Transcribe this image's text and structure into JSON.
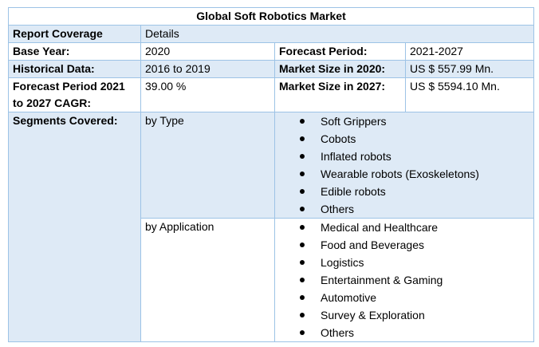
{
  "title": "Global Soft Robotics Market",
  "header": {
    "label": "Report Coverage",
    "value": "Details"
  },
  "rows": {
    "base_year": {
      "label": "Base Year:",
      "value": "2020"
    },
    "forecast_period": {
      "label": "Forecast Period:",
      "value": "2021-2027"
    },
    "historical_data": {
      "label": "Historical Data:",
      "value": "2016 to 2019"
    },
    "market_size_2020": {
      "label": "Market Size in 2020:",
      "value": "US $ 557.99 Mn."
    },
    "cagr": {
      "label": "Forecast Period 2021 to 2027 CAGR:",
      "value": "39.00 %"
    },
    "market_size_2027": {
      "label": "Market Size in 2027:",
      "value": "US $ 5594.10 Mn."
    }
  },
  "segments": {
    "label": "Segments Covered:",
    "by_type": {
      "label": "by Type",
      "items": [
        "Soft Grippers",
        "Cobots",
        "Inflated robots",
        "Wearable robots (Exoskeletons)",
        "Edible robots",
        "Others"
      ]
    },
    "by_application": {
      "label": "by Application",
      "items": [
        "Medical and Healthcare",
        "Food and Beverages",
        "Logistics",
        "Entertainment & Gaming",
        "Automotive",
        "Survey & Exploration",
        "Others"
      ]
    }
  }
}
